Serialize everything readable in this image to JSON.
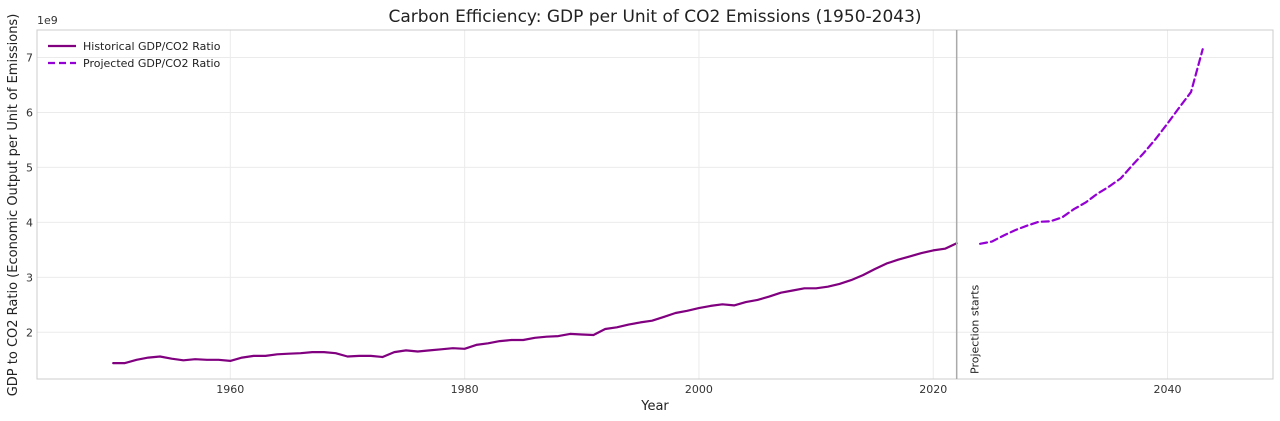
{
  "chart_data": {
    "type": "line",
    "title": "Carbon Efficiency: GDP per Unit of CO2 Emissions (1950-2043)",
    "xlabel": "Year",
    "ylabel": "GDP to CO2 Ratio (Economic Output per Unit of Emissions)",
    "y_offset_label": "1e9",
    "xlim": [
      1943.5,
      2049
    ],
    "ylim": [
      1.15,
      7.5
    ],
    "x_ticks": [
      1960,
      1980,
      2000,
      2020,
      2040
    ],
    "y_ticks": [
      2,
      3,
      4,
      5,
      6,
      7
    ],
    "grid": true,
    "legend_position": "top-left",
    "annotation": {
      "x": 2022,
      "text": "Projection starts"
    },
    "colors": {
      "historical": "#800080",
      "projected": "#9400D3",
      "vline": "#aaaaaa"
    },
    "series": [
      {
        "name": "Historical GDP/CO2 Ratio",
        "style": "solid",
        "x": [
          1950,
          1951,
          1952,
          1953,
          1954,
          1955,
          1956,
          1957,
          1958,
          1959,
          1960,
          1961,
          1962,
          1963,
          1964,
          1965,
          1966,
          1967,
          1968,
          1969,
          1970,
          1971,
          1972,
          1973,
          1974,
          1975,
          1976,
          1977,
          1978,
          1979,
          1980,
          1981,
          1982,
          1983,
          1984,
          1985,
          1986,
          1987,
          1988,
          1989,
          1990,
          1991,
          1992,
          1993,
          1994,
          1995,
          1996,
          1997,
          1998,
          1999,
          2000,
          2001,
          2002,
          2003,
          2004,
          2005,
          2006,
          2007,
          2008,
          2009,
          2010,
          2011,
          2012,
          2013,
          2014,
          2015,
          2016,
          2017,
          2018,
          2019,
          2020,
          2021,
          2022
        ],
        "y": [
          1.44,
          1.44,
          1.5,
          1.54,
          1.56,
          1.52,
          1.49,
          1.51,
          1.5,
          1.5,
          1.48,
          1.54,
          1.57,
          1.57,
          1.6,
          1.61,
          1.62,
          1.64,
          1.64,
          1.62,
          1.56,
          1.57,
          1.57,
          1.55,
          1.64,
          1.67,
          1.65,
          1.67,
          1.69,
          1.71,
          1.7,
          1.77,
          1.8,
          1.84,
          1.86,
          1.86,
          1.9,
          1.92,
          1.93,
          1.97,
          1.96,
          1.95,
          2.06,
          2.09,
          2.14,
          2.18,
          2.21,
          2.28,
          2.35,
          2.39,
          2.44,
          2.48,
          2.51,
          2.49,
          2.55,
          2.59,
          2.65,
          2.72,
          2.76,
          2.8,
          2.8,
          2.83,
          2.88,
          2.95,
          3.04,
          3.15,
          3.25,
          3.32,
          3.38,
          3.44,
          3.49,
          3.52,
          3.62
        ]
      },
      {
        "name": "Projected GDP/CO2 Ratio",
        "style": "dashed",
        "x": [
          2024,
          2025,
          2026,
          2027,
          2028,
          2029,
          2030,
          2031,
          2032,
          2033,
          2034,
          2035,
          2036,
          2037,
          2038,
          2039,
          2040,
          2041,
          2042,
          2043
        ],
        "y": [
          3.61,
          3.65,
          3.76,
          3.86,
          3.94,
          4.01,
          4.02,
          4.09,
          4.24,
          4.36,
          4.52,
          4.65,
          4.8,
          5.04,
          5.27,
          5.52,
          5.8,
          6.09,
          6.37,
          7.15
        ]
      }
    ]
  }
}
